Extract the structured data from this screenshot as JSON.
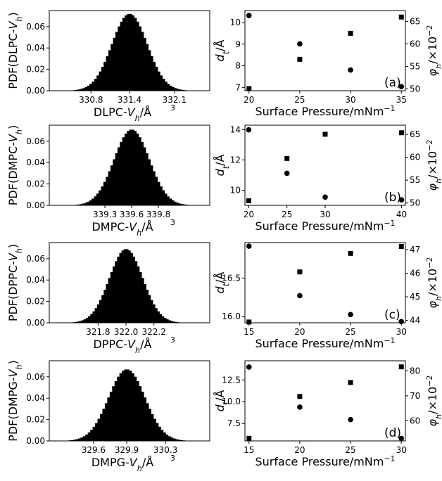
{
  "chart_data": [
    {
      "type": "bar",
      "title": "",
      "xlabel": "DLPC-V_h/Å³",
      "ylabel": "PDF(DLPC-V_h)",
      "xlim": [
        330.15,
        332.65
      ],
      "ylim": [
        0,
        0.075
      ],
      "xticks": [
        "330.8",
        "331.4",
        "332.1"
      ],
      "xtick_values": [
        330.8,
        331.4,
        332.1
      ],
      "yticks": [
        "0.00",
        "0.02",
        "0.04",
        "0.06"
      ],
      "distribution": {
        "mean": 331.4,
        "sd": 0.275,
        "peak": 0.072,
        "bins": 48
      }
    },
    {
      "type": "scatter",
      "title": "",
      "panel_label": "(a)",
      "xlabel": "Surface Pressure/mNm⁻¹",
      "ylabel_left": "d_t/Å",
      "ylabel_right": "φ_h/×10⁻²",
      "x": [
        20,
        25,
        30,
        35
      ],
      "xticks": [
        "20",
        "25",
        "30",
        "35"
      ],
      "xlim": [
        19.6,
        35.4
      ],
      "y_left_ticks": [
        "7",
        "8",
        "9",
        "10"
      ],
      "ylim_left": [
        6.85,
        10.55
      ],
      "y_right_ticks": [
        "50",
        "55",
        "60",
        "65"
      ],
      "ylim_right": [
        49.6,
        67.4
      ],
      "series": [
        {
          "axis": "left",
          "marker": "square",
          "values": [
            6.95,
            8.3,
            9.5,
            10.25
          ]
        },
        {
          "axis": "right",
          "marker": "circle",
          "values": [
            66.3,
            60.0,
            54.2,
            50.5
          ]
        }
      ]
    },
    {
      "type": "bar",
      "title": "",
      "xlabel": "DMPC-V_h/Å³",
      "ylabel": "PDF(DMPC-V_h)",
      "xlim": [
        338.78,
        340.28
      ],
      "ylim": [
        0,
        0.075
      ],
      "xticks": [
        "339.3",
        "339.6",
        "339.8"
      ],
      "xtick_values": [
        339.3,
        339.55,
        339.8
      ],
      "yticks": [
        "0.00",
        "0.02",
        "0.04",
        "0.06"
      ],
      "distribution": {
        "mean": 339.55,
        "sd": 0.165,
        "peak": 0.071,
        "bins": 48
      }
    },
    {
      "type": "scatter",
      "title": "",
      "panel_label": "(b)",
      "xlabel": "Surface Pressure/mNm⁻¹",
      "ylabel_left": "d_t/Å",
      "ylabel_right": "φ_h/×10⁻²",
      "x": [
        20,
        25,
        30,
        40
      ],
      "xticks": [
        "20",
        "25",
        "30",
        "40"
      ],
      "xlim": [
        19.5,
        40.5
      ],
      "y_left_ticks": [
        "10",
        "12",
        "14"
      ],
      "ylim_left": [
        9.0,
        14.3
      ],
      "y_right_ticks": [
        "50",
        "55",
        "60",
        "65"
      ],
      "ylim_right": [
        49.5,
        67.0
      ],
      "series": [
        {
          "axis": "left",
          "marker": "square",
          "values": [
            9.3,
            12.1,
            13.7,
            13.8
          ]
        },
        {
          "axis": "right",
          "marker": "circle",
          "values": [
            66.0,
            56.5,
            51.3,
            50.7
          ]
        }
      ]
    },
    {
      "type": "bar",
      "title": "",
      "xlabel": "DPPC-V_h/Å³",
      "ylabel": "PDF(DPPC-V_h)",
      "xlim": [
        321.45,
        322.6
      ],
      "ylim": [
        0,
        0.075
      ],
      "xticks": [
        "321.8",
        "322.0",
        "322.2"
      ],
      "xtick_values": [
        321.8,
        322.0,
        322.2
      ],
      "yticks": [
        "0.00",
        "0.02",
        "0.04",
        "0.06"
      ],
      "distribution": {
        "mean": 322.0,
        "sd": 0.12,
        "peak": 0.069,
        "bins": 48
      }
    },
    {
      "type": "scatter",
      "title": "",
      "panel_label": "(c)",
      "xlabel": "Surface Pressure/mNm⁻¹",
      "ylabel_left": "d_t/Å",
      "ylabel_right": "φ_h/×10⁻²",
      "x": [
        15,
        20,
        25,
        30
      ],
      "xticks": [
        "15",
        "20",
        "25",
        "30"
      ],
      "xlim": [
        14.6,
        30.4
      ],
      "y_left_ticks": [
        "16.0",
        "16.5"
      ],
      "ylim_left": [
        15.92,
        16.96
      ],
      "y_right_ticks": [
        "44",
        "45",
        "46",
        "47"
      ],
      "ylim_right": [
        43.9,
        47.3
      ],
      "series": [
        {
          "axis": "left",
          "marker": "square",
          "values": [
            15.93,
            16.58,
            16.82,
            16.91
          ]
        },
        {
          "axis": "right",
          "marker": "circle",
          "values": [
            47.15,
            45.05,
            44.25,
            43.95
          ]
        }
      ]
    },
    {
      "type": "bar",
      "title": "",
      "xlabel": "DMPG-V_h/Å³",
      "ylabel": "PDF(DMPG-V_h)",
      "xlim": [
        329.2,
        330.65
      ],
      "ylim": [
        0,
        0.075
      ],
      "xticks": [
        "329.6",
        "329.9",
        "330.3"
      ],
      "xtick_values": [
        329.6,
        329.9,
        330.25
      ],
      "yticks": [
        "0.00",
        "0.02",
        "0.04",
        "0.06"
      ],
      "distribution": {
        "mean": 329.9,
        "sd": 0.165,
        "peak": 0.067,
        "bins": 48
      }
    },
    {
      "type": "scatter",
      "title": "",
      "panel_label": "(d)",
      "xlabel": "Surface Pressure/mNm⁻¹",
      "ylabel_left": "d_t/Å",
      "ylabel_right": "φ_h/×10⁻²",
      "x": [
        15,
        20,
        25,
        30
      ],
      "xticks": [
        "15",
        "20",
        "25",
        "30"
      ],
      "xlim": [
        14.6,
        30.4
      ],
      "y_left_ticks": [
        "7.5",
        "10.0",
        "12.5"
      ],
      "ylim_left": [
        5.5,
        14.7
      ],
      "y_right_ticks": [
        "60",
        "70",
        "80"
      ],
      "ylim_right": [
        52.0,
        84.0
      ],
      "series": [
        {
          "axis": "left",
          "marker": "square",
          "values": [
            5.8,
            10.6,
            12.2,
            14.0
          ]
        },
        {
          "axis": "right",
          "marker": "circle",
          "values": [
            81.5,
            65.5,
            60.5,
            53.0
          ]
        }
      ]
    }
  ]
}
